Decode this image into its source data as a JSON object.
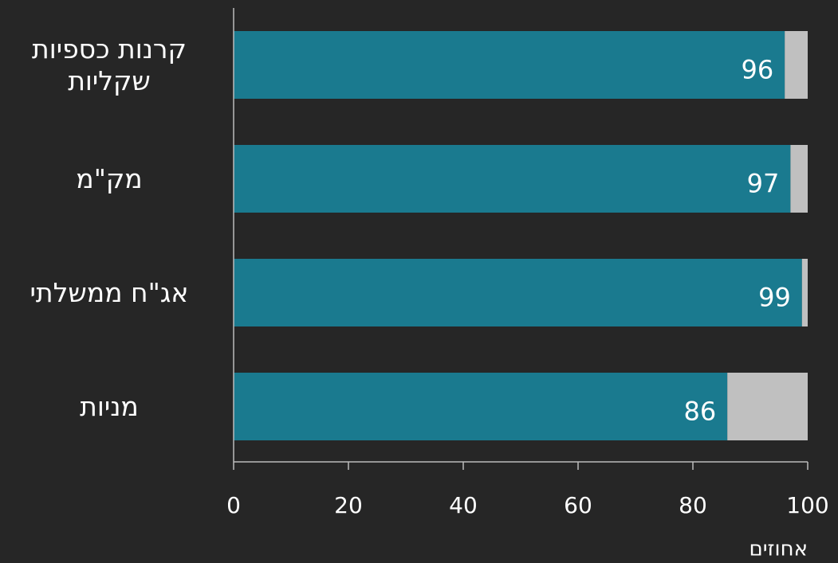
{
  "chart_data": {
    "type": "stacked_barh",
    "categories": [
      "קרנות כספיות שקליות",
      "מק\"מ",
      "אג\"ח ממשלתי",
      "מניות"
    ],
    "series": [
      {
        "color": "#1a7a8f",
        "values": [
          96,
          97,
          99,
          86
        ]
      },
      {
        "color": "#c0c0c0",
        "values": [
          4,
          3,
          1,
          14
        ]
      }
    ],
    "xlim": [
      0,
      100
    ],
    "xticks": [
      0,
      20,
      40,
      60,
      80,
      100
    ],
    "xlabel": "אחוזים",
    "background": "#262626"
  }
}
